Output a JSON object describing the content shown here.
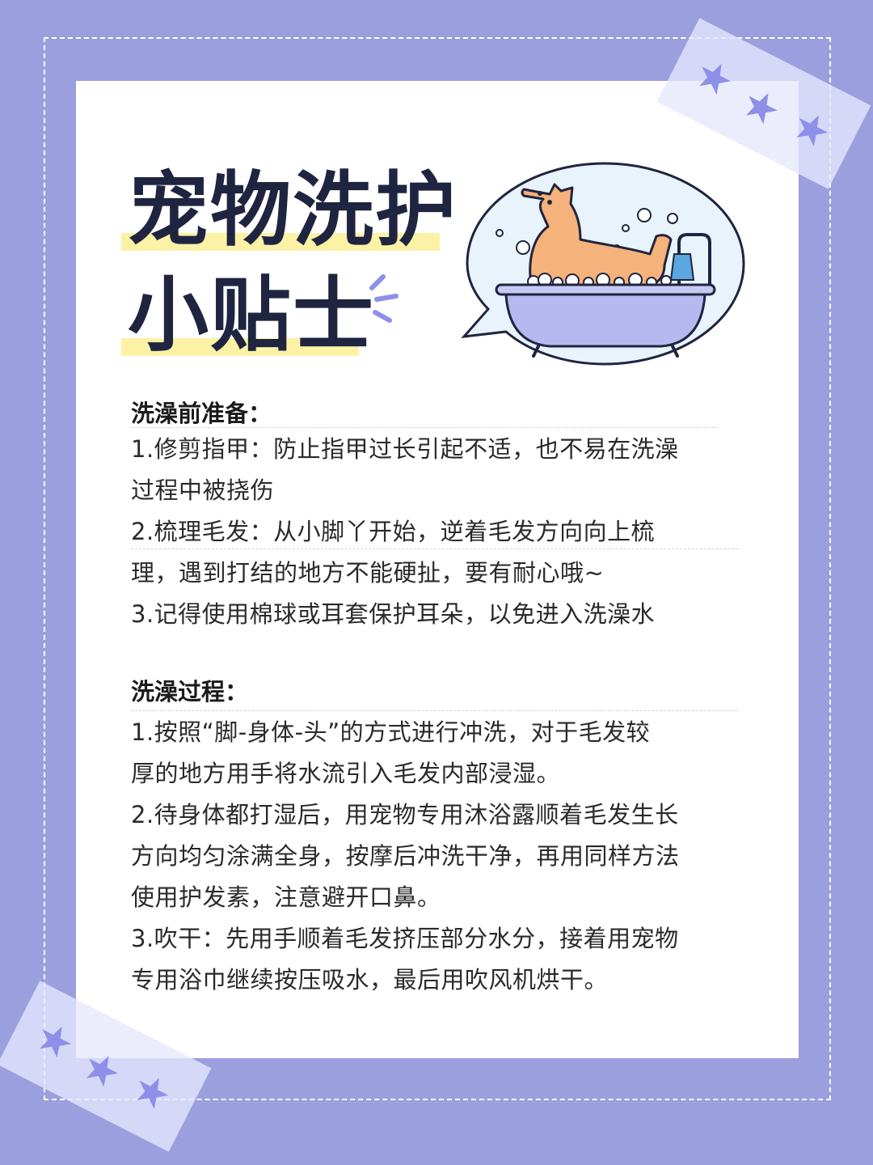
{
  "title": {
    "line1": "宠物洗护",
    "line2": "小贴士"
  },
  "colors": {
    "background": "#9b9fde",
    "card": "#ffffff",
    "title_text": "#1f2540",
    "title_highlight": "#fbf2a6",
    "accent": "#8e8fe8"
  },
  "illustration": {
    "icon": "dog-bathtub-icon"
  },
  "section1": {
    "heading": "洗澡前准备：",
    "lines": [
      "1.修剪指甲：防止指甲过长引起不适，也不易在洗澡",
      "过程中被挠伤",
      "2.梳理毛发：从小脚丫开始，逆着毛发方向向上梳",
      "理，遇到打结的地方不能硬扯，要有耐心哦~",
      "3.记得使用棉球或耳套保护耳朵，以免进入洗澡水"
    ]
  },
  "section2": {
    "heading": "洗澡过程：",
    "lines": [
      "1.按照“脚-身体-头”的方式进行冲洗，对于毛发较",
      "厚的地方用手将水流引入毛发内部浸湿。",
      "2.待身体都打湿后，用宠物专用沐浴露顺着毛发生长",
      "方向均匀涂满全身，按摩后冲洗干净，再用同样方法",
      "使用护发素，注意避开口鼻。",
      "3.吹干：先用手顺着毛发挤压部分水分，接着用宠物",
      "专用浴巾继续按压吸水，最后用吹风机烘干。"
    ]
  }
}
